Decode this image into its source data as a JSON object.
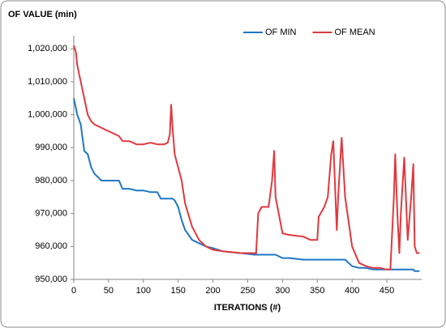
{
  "chart_data": {
    "type": "line",
    "title": "OF VALUE (min)",
    "x_label": "ITERATIONS (#)",
    "legend": "top-right",
    "x": [
      0,
      3,
      5,
      10,
      15,
      20,
      25,
      30,
      40,
      50,
      60,
      65,
      70,
      80,
      90,
      100,
      110,
      120,
      125,
      130,
      135,
      138,
      140,
      142,
      145,
      150,
      155,
      160,
      170,
      180,
      190,
      200,
      215,
      240,
      260,
      262,
      265,
      270,
      280,
      285,
      288,
      290,
      300,
      310,
      330,
      340,
      350,
      352,
      360,
      365,
      370,
      373,
      378,
      380,
      385,
      390,
      400,
      410,
      420,
      430,
      440,
      450,
      455,
      460,
      462,
      465,
      468,
      470,
      475,
      480,
      485,
      488,
      490,
      493,
      497
    ],
    "series": [
      {
        "name": "OF MIN",
        "color": "#1f77c4",
        "values": [
          1005000,
          1002000,
          1000000,
          997000,
          989000,
          988000,
          984000,
          982000,
          980000,
          980000,
          980000,
          980000,
          977500,
          977500,
          977000,
          977000,
          976500,
          976500,
          974500,
          974500,
          974500,
          974500,
          974500,
          974500,
          974000,
          972000,
          968000,
          965000,
          962000,
          961000,
          960000,
          959500,
          958500,
          958000,
          957500,
          957500,
          957500,
          957500,
          957500,
          957500,
          957500,
          957500,
          956500,
          956500,
          956000,
          956000,
          956000,
          956000,
          956000,
          956000,
          956000,
          956000,
          956000,
          956000,
          956000,
          956000,
          954000,
          953500,
          953500,
          953000,
          953000,
          953000,
          953000,
          953000,
          953000,
          953000,
          953000,
          953000,
          953000,
          953000,
          953000,
          953000,
          952500,
          952500,
          952500
        ]
      },
      {
        "name": "OF MEAN",
        "color": "#e0393e",
        "values": [
          1021000,
          1019000,
          1015000,
          1010000,
          1005000,
          1000000,
          998000,
          997000,
          996000,
          995000,
          994000,
          993500,
          992000,
          992000,
          991000,
          991000,
          991500,
          991000,
          991000,
          991000,
          991500,
          994000,
          1003000,
          996000,
          988000,
          984000,
          980000,
          973000,
          966000,
          962000,
          960000,
          959000,
          958500,
          958000,
          958000,
          957800,
          970000,
          972000,
          972000,
          980000,
          989000,
          975000,
          964000,
          963500,
          963000,
          962000,
          962000,
          969000,
          972000,
          975000,
          988000,
          992000,
          965000,
          975000,
          993000,
          975000,
          960000,
          955000,
          954000,
          953500,
          953500,
          953000,
          953000,
          975000,
          988000,
          970000,
          958000,
          970000,
          987000,
          962000,
          975000,
          985000,
          960000,
          958000,
          958000
        ]
      }
    ],
    "xlim": [
      0,
      500
    ],
    "xticks": [
      0,
      50,
      100,
      150,
      200,
      250,
      300,
      350,
      400,
      450
    ],
    "ylim": [
      950000,
      1024000
    ],
    "yticks": [
      {
        "value": 950000,
        "label": "950,000"
      },
      {
        "value": 960000,
        "label": "960,000"
      },
      {
        "value": 970000,
        "label": "970,000"
      },
      {
        "value": 980000,
        "label": "980,000"
      },
      {
        "value": 990000,
        "label": "990,000"
      },
      {
        "value": 1000000,
        "label": "1,000,000"
      },
      {
        "value": 1010000,
        "label": "1,010,000"
      },
      {
        "value": 1020000,
        "label": "1,020,000"
      }
    ]
  }
}
